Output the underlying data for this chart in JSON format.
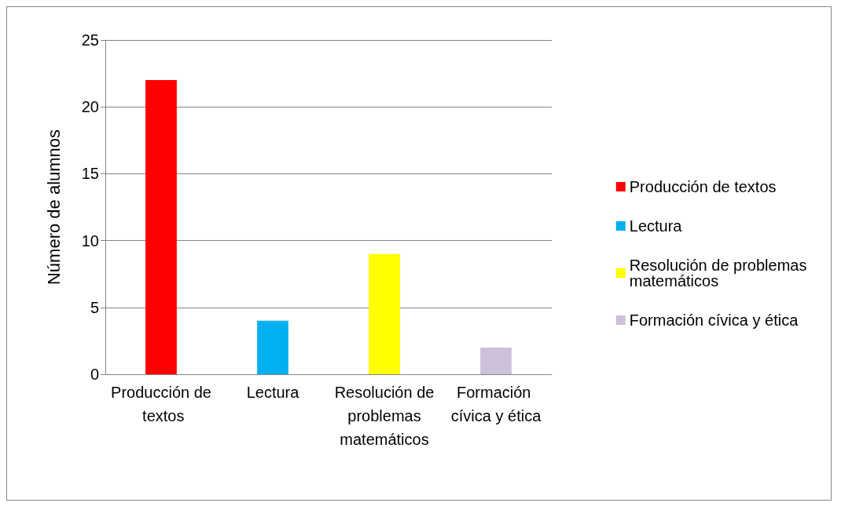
{
  "chart_data": {
    "type": "bar",
    "ylabel": "Número de alumnos",
    "categories": [
      "Producción de textos",
      "Lectura",
      "Resolución de problemas matemáticos",
      "Formación cívica y ética"
    ],
    "series": [
      {
        "name": "Producción de textos",
        "color": "#ff0000",
        "values": [
          22,
          null,
          null,
          null
        ]
      },
      {
        "name": "Lectura",
        "color": "#00b0f0",
        "values": [
          null,
          4,
          null,
          null
        ]
      },
      {
        "name": "Resolución de problemas matemáticos",
        "color": "#ffff00",
        "values": [
          null,
          null,
          9,
          null
        ]
      },
      {
        "name": "Formación cívica y ética",
        "color": "#ccc0da",
        "values": [
          null,
          null,
          null,
          2
        ]
      }
    ],
    "ylim": [
      0,
      25
    ],
    "yticks": [
      0,
      5,
      10,
      15,
      20,
      25
    ],
    "grid": "y",
    "legend": "right"
  }
}
